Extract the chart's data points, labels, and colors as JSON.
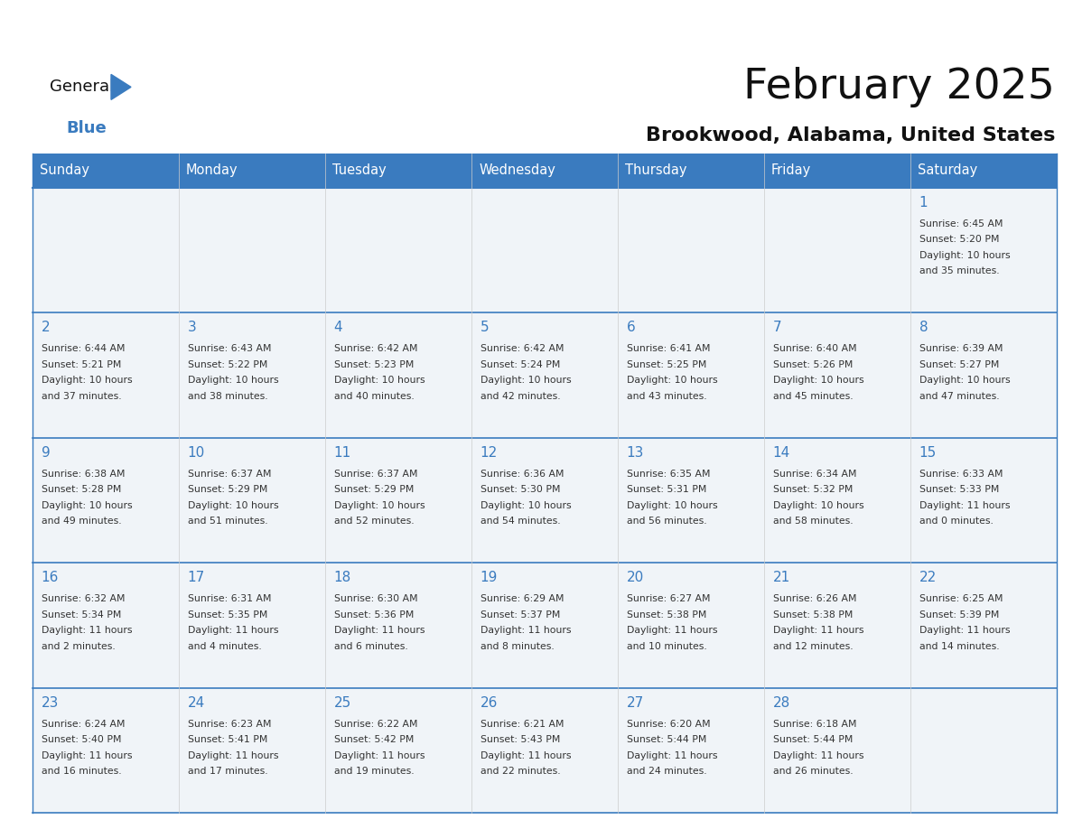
{
  "title": "February 2025",
  "subtitle": "Brookwood, Alabama, United States",
  "header_color": "#3a7bbf",
  "header_text_color": "#ffffff",
  "cell_bg_even": "#f0f4f8",
  "cell_bg_odd": "#ffffff",
  "border_color": "#3a7bbf",
  "day_text_color": "#3a7bbf",
  "info_text_color": "#333333",
  "weekdays": [
    "Sunday",
    "Monday",
    "Tuesday",
    "Wednesday",
    "Thursday",
    "Friday",
    "Saturday"
  ],
  "days": [
    {
      "day": 1,
      "col": 6,
      "row": 0,
      "sunrise": "6:45 AM",
      "sunset": "5:20 PM",
      "daylight_hours": 10,
      "daylight_minutes": 35
    },
    {
      "day": 2,
      "col": 0,
      "row": 1,
      "sunrise": "6:44 AM",
      "sunset": "5:21 PM",
      "daylight_hours": 10,
      "daylight_minutes": 37
    },
    {
      "day": 3,
      "col": 1,
      "row": 1,
      "sunrise": "6:43 AM",
      "sunset": "5:22 PM",
      "daylight_hours": 10,
      "daylight_minutes": 38
    },
    {
      "day": 4,
      "col": 2,
      "row": 1,
      "sunrise": "6:42 AM",
      "sunset": "5:23 PM",
      "daylight_hours": 10,
      "daylight_minutes": 40
    },
    {
      "day": 5,
      "col": 3,
      "row": 1,
      "sunrise": "6:42 AM",
      "sunset": "5:24 PM",
      "daylight_hours": 10,
      "daylight_minutes": 42
    },
    {
      "day": 6,
      "col": 4,
      "row": 1,
      "sunrise": "6:41 AM",
      "sunset": "5:25 PM",
      "daylight_hours": 10,
      "daylight_minutes": 43
    },
    {
      "day": 7,
      "col": 5,
      "row": 1,
      "sunrise": "6:40 AM",
      "sunset": "5:26 PM",
      "daylight_hours": 10,
      "daylight_minutes": 45
    },
    {
      "day": 8,
      "col": 6,
      "row": 1,
      "sunrise": "6:39 AM",
      "sunset": "5:27 PM",
      "daylight_hours": 10,
      "daylight_minutes": 47
    },
    {
      "day": 9,
      "col": 0,
      "row": 2,
      "sunrise": "6:38 AM",
      "sunset": "5:28 PM",
      "daylight_hours": 10,
      "daylight_minutes": 49
    },
    {
      "day": 10,
      "col": 1,
      "row": 2,
      "sunrise": "6:37 AM",
      "sunset": "5:29 PM",
      "daylight_hours": 10,
      "daylight_minutes": 51
    },
    {
      "day": 11,
      "col": 2,
      "row": 2,
      "sunrise": "6:37 AM",
      "sunset": "5:29 PM",
      "daylight_hours": 10,
      "daylight_minutes": 52
    },
    {
      "day": 12,
      "col": 3,
      "row": 2,
      "sunrise": "6:36 AM",
      "sunset": "5:30 PM",
      "daylight_hours": 10,
      "daylight_minutes": 54
    },
    {
      "day": 13,
      "col": 4,
      "row": 2,
      "sunrise": "6:35 AM",
      "sunset": "5:31 PM",
      "daylight_hours": 10,
      "daylight_minutes": 56
    },
    {
      "day": 14,
      "col": 5,
      "row": 2,
      "sunrise": "6:34 AM",
      "sunset": "5:32 PM",
      "daylight_hours": 10,
      "daylight_minutes": 58
    },
    {
      "day": 15,
      "col": 6,
      "row": 2,
      "sunrise": "6:33 AM",
      "sunset": "5:33 PM",
      "daylight_hours": 11,
      "daylight_minutes": 0
    },
    {
      "day": 16,
      "col": 0,
      "row": 3,
      "sunrise": "6:32 AM",
      "sunset": "5:34 PM",
      "daylight_hours": 11,
      "daylight_minutes": 2
    },
    {
      "day": 17,
      "col": 1,
      "row": 3,
      "sunrise": "6:31 AM",
      "sunset": "5:35 PM",
      "daylight_hours": 11,
      "daylight_minutes": 4
    },
    {
      "day": 18,
      "col": 2,
      "row": 3,
      "sunrise": "6:30 AM",
      "sunset": "5:36 PM",
      "daylight_hours": 11,
      "daylight_minutes": 6
    },
    {
      "day": 19,
      "col": 3,
      "row": 3,
      "sunrise": "6:29 AM",
      "sunset": "5:37 PM",
      "daylight_hours": 11,
      "daylight_minutes": 8
    },
    {
      "day": 20,
      "col": 4,
      "row": 3,
      "sunrise": "6:27 AM",
      "sunset": "5:38 PM",
      "daylight_hours": 11,
      "daylight_minutes": 10
    },
    {
      "day": 21,
      "col": 5,
      "row": 3,
      "sunrise": "6:26 AM",
      "sunset": "5:38 PM",
      "daylight_hours": 11,
      "daylight_minutes": 12
    },
    {
      "day": 22,
      "col": 6,
      "row": 3,
      "sunrise": "6:25 AM",
      "sunset": "5:39 PM",
      "daylight_hours": 11,
      "daylight_minutes": 14
    },
    {
      "day": 23,
      "col": 0,
      "row": 4,
      "sunrise": "6:24 AM",
      "sunset": "5:40 PM",
      "daylight_hours": 11,
      "daylight_minutes": 16
    },
    {
      "day": 24,
      "col": 1,
      "row": 4,
      "sunrise": "6:23 AM",
      "sunset": "5:41 PM",
      "daylight_hours": 11,
      "daylight_minutes": 17
    },
    {
      "day": 25,
      "col": 2,
      "row": 4,
      "sunrise": "6:22 AM",
      "sunset": "5:42 PM",
      "daylight_hours": 11,
      "daylight_minutes": 19
    },
    {
      "day": 26,
      "col": 3,
      "row": 4,
      "sunrise": "6:21 AM",
      "sunset": "5:43 PM",
      "daylight_hours": 11,
      "daylight_minutes": 22
    },
    {
      "day": 27,
      "col": 4,
      "row": 4,
      "sunrise": "6:20 AM",
      "sunset": "5:44 PM",
      "daylight_hours": 11,
      "daylight_minutes": 24
    },
    {
      "day": 28,
      "col": 5,
      "row": 4,
      "sunrise": "6:18 AM",
      "sunset": "5:44 PM",
      "daylight_hours": 11,
      "daylight_minutes": 26
    }
  ],
  "num_rows": 5,
  "num_cols": 7,
  "fig_width": 11.88,
  "fig_height": 9.18,
  "logo_color_black": "#111111",
  "logo_color_blue": "#3a7bbf"
}
